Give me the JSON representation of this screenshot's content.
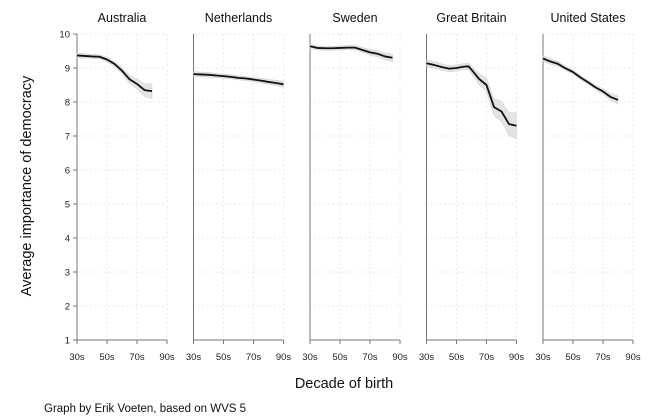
{
  "chart_data": {
    "type": "line",
    "ylabel": "Average importance of democracy",
    "xlabel": "Decade of birth",
    "note": "Graph by Erik Voeten, based on WVS 5",
    "ylim": [
      1,
      10
    ],
    "yticks": [
      1,
      2,
      3,
      4,
      5,
      6,
      7,
      8,
      9,
      10
    ],
    "xlim": [
      1930,
      1990
    ],
    "xticks": [
      1930,
      1950,
      1970,
      1990
    ],
    "xtick_labels": [
      "30s",
      "50s",
      "70s",
      "90s"
    ],
    "grid": true,
    "band_color": "#d9d9d9",
    "line_color": "#111111",
    "panels": [
      {
        "title": "Australia",
        "x": [
          1930,
          1940,
          1945,
          1950,
          1955,
          1960,
          1965,
          1970,
          1975,
          1978,
          1980
        ],
        "y": [
          9.37,
          9.34,
          9.33,
          9.25,
          9.12,
          8.92,
          8.67,
          8.53,
          8.35,
          8.33,
          8.32
        ],
        "lower": [
          9.3,
          9.28,
          9.27,
          9.18,
          9.04,
          8.83,
          8.55,
          8.38,
          8.17,
          8.12,
          8.1
        ],
        "upper": [
          9.44,
          9.4,
          9.39,
          9.32,
          9.2,
          9.01,
          8.79,
          8.68,
          8.53,
          8.54,
          8.54
        ]
      },
      {
        "title": "Netherlands",
        "x": [
          1930,
          1935,
          1940,
          1945,
          1950,
          1955,
          1960,
          1965,
          1970,
          1975,
          1980,
          1985,
          1990
        ],
        "y": [
          8.82,
          8.81,
          8.8,
          8.78,
          8.76,
          8.74,
          8.71,
          8.69,
          8.66,
          8.63,
          8.59,
          8.56,
          8.52
        ],
        "lower": [
          8.74,
          8.74,
          8.73,
          8.72,
          8.7,
          8.68,
          8.65,
          8.63,
          8.6,
          8.56,
          8.52,
          8.48,
          8.43
        ],
        "upper": [
          8.9,
          8.88,
          8.87,
          8.84,
          8.82,
          8.8,
          8.77,
          8.75,
          8.72,
          8.7,
          8.66,
          8.64,
          8.61
        ]
      },
      {
        "title": "Sweden",
        "x": [
          1930,
          1935,
          1940,
          1945,
          1950,
          1955,
          1960,
          1965,
          1970,
          1975,
          1980,
          1985
        ],
        "y": [
          9.64,
          9.59,
          9.58,
          9.58,
          9.59,
          9.6,
          9.6,
          9.53,
          9.46,
          9.42,
          9.34,
          9.3
        ],
        "lower": [
          9.57,
          9.53,
          9.52,
          9.52,
          9.53,
          9.54,
          9.53,
          9.46,
          9.38,
          9.33,
          9.24,
          9.19
        ],
        "upper": [
          9.71,
          9.65,
          9.64,
          9.64,
          9.65,
          9.66,
          9.67,
          9.6,
          9.54,
          9.51,
          9.44,
          9.41
        ]
      },
      {
        "title": "Great Britain",
        "x": [
          1930,
          1935,
          1940,
          1945,
          1950,
          1955,
          1958,
          1960,
          1965,
          1970,
          1975,
          1980,
          1985,
          1990
        ],
        "y": [
          9.14,
          9.09,
          9.03,
          8.98,
          9.0,
          9.04,
          9.05,
          8.95,
          8.68,
          8.5,
          7.85,
          7.72,
          7.35,
          7.3
        ],
        "lower": [
          9.04,
          8.99,
          8.94,
          8.89,
          8.91,
          8.95,
          8.95,
          8.83,
          8.52,
          8.3,
          7.6,
          7.42,
          7.01,
          6.92
        ],
        "upper": [
          9.24,
          9.19,
          9.12,
          9.07,
          9.09,
          9.13,
          9.15,
          9.07,
          8.84,
          8.7,
          8.1,
          8.02,
          7.69,
          7.68
        ]
      },
      {
        "title": "United States",
        "x": [
          1930,
          1935,
          1940,
          1945,
          1950,
          1955,
          1960,
          1965,
          1970,
          1975,
          1980
        ],
        "y": [
          9.28,
          9.19,
          9.12,
          8.99,
          8.88,
          8.72,
          8.58,
          8.43,
          8.31,
          8.15,
          8.06
        ],
        "lower": [
          9.19,
          9.11,
          9.05,
          8.93,
          8.82,
          8.66,
          8.52,
          8.36,
          8.23,
          8.05,
          7.94
        ],
        "upper": [
          9.37,
          9.27,
          9.19,
          9.05,
          8.94,
          8.78,
          8.64,
          8.5,
          8.39,
          8.25,
          8.18
        ]
      }
    ]
  }
}
